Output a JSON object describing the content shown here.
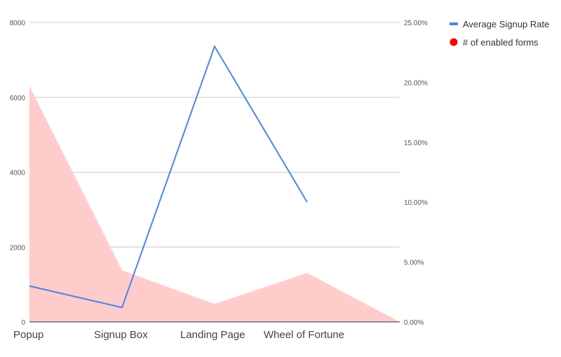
{
  "chart_data": {
    "type": "line",
    "categories": [
      "Popup",
      "Signup Box",
      "Landing Page",
      "Wheel of Fortune",
      ""
    ],
    "series": [
      {
        "name": "Average Signup Rate",
        "kind": "line",
        "axis": "right",
        "color": "#4a86e8",
        "values": [
          3.0,
          1.2,
          23.0,
          10.0,
          null
        ]
      },
      {
        "name": "# of enabled forms",
        "kind": "area",
        "axis": "left",
        "color": "#ff0000",
        "fill_color": "#ffcccc",
        "values": [
          6300,
          1380,
          480,
          1310,
          0
        ]
      }
    ],
    "y_left": {
      "ylim": [
        0,
        8000
      ],
      "ticks": [
        "0",
        "2000",
        "4000",
        "6000",
        "8000"
      ]
    },
    "y_right": {
      "ylim": [
        0,
        25
      ],
      "ticks": [
        "0.00%",
        "5.00%",
        "10.00%",
        "15.00%",
        "20.00%",
        "25.00%"
      ]
    },
    "grid": true,
    "legend_position": "top-right"
  }
}
